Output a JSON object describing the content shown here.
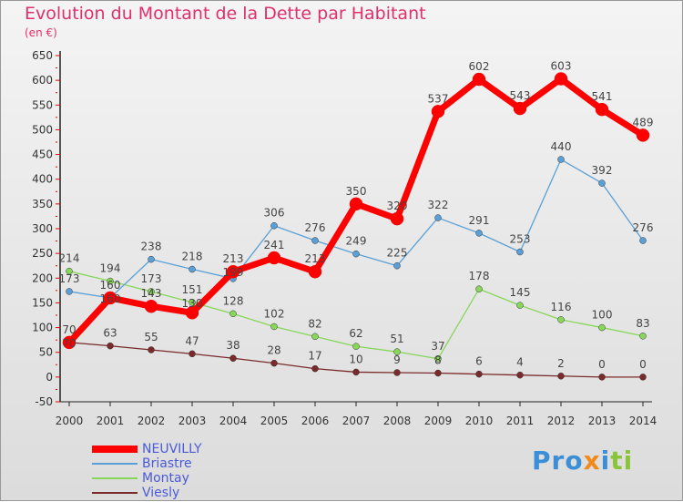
{
  "title": "Evolution du Montant de la Dette par Habitant",
  "unit": "(en €)",
  "logo": "Proxiti",
  "chart_data": {
    "type": "line",
    "title": "Evolution du Montant de la Dette par Habitant",
    "ylabel": "(en €)",
    "ylim": [
      -50,
      650
    ],
    "yticks": [
      -50,
      0,
      50,
      100,
      150,
      200,
      250,
      300,
      350,
      400,
      450,
      500,
      550,
      600,
      650
    ],
    "x": [
      2000,
      2001,
      2002,
      2003,
      2004,
      2005,
      2006,
      2007,
      2008,
      2009,
      2010,
      2011,
      2012,
      2013,
      2014
    ],
    "legend_position": "bottom-left",
    "series": [
      {
        "name": "NEUVILLY",
        "color": "#ff0000",
        "width": 7,
        "values": [
          70,
          160,
          143,
          130,
          213,
          241,
          213,
          350,
          320,
          537,
          602,
          543,
          603,
          541,
          489
        ]
      },
      {
        "name": "Briastre",
        "color": "#5aa0d6",
        "width": 1.3,
        "values": [
          173,
          160,
          238,
          218,
          199,
          306,
          276,
          249,
          225,
          322,
          291,
          253,
          440,
          392,
          276
        ]
      },
      {
        "name": "Montay",
        "color": "#88d65a",
        "width": 1.3,
        "values": [
          214,
          194,
          173,
          151,
          128,
          102,
          82,
          62,
          51,
          37,
          178,
          145,
          116,
          100,
          83
        ]
      },
      {
        "name": "Viesly",
        "color": "#7a2a2a",
        "width": 1.3,
        "values": [
          70,
          63,
          55,
          47,
          38,
          28,
          17,
          10,
          9,
          8,
          6,
          4,
          2,
          0,
          0
        ]
      }
    ]
  }
}
